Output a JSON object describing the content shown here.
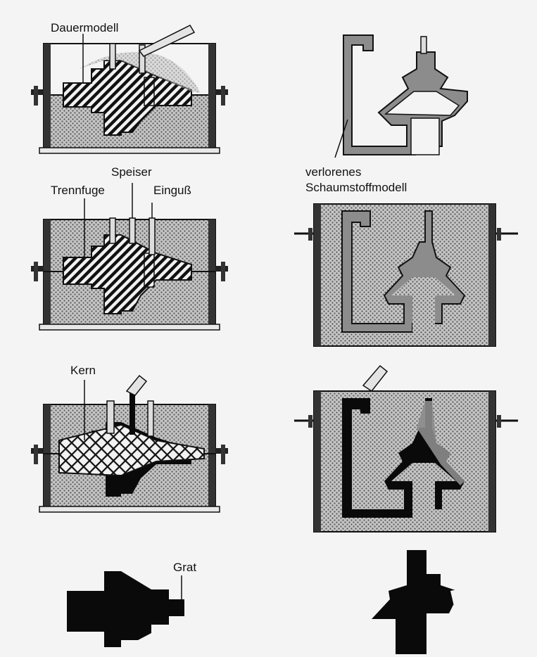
{
  "labels": {
    "permanent_pattern": "Dauermodell",
    "riser": "Speiser",
    "parting_line": "Trennfuge",
    "sprue": "Einguß",
    "core": "Kern",
    "flash": "Grat",
    "lost_foam_line1": "verlorenes",
    "lost_foam_line2": "Schaumstoffmodell"
  },
  "colors": {
    "sand": "#bdbdbd",
    "sand_dot": "#5a5a5a",
    "metal": "#0a0a0a",
    "foam": "#8c8c8c",
    "background": "#f4f4f4"
  }
}
